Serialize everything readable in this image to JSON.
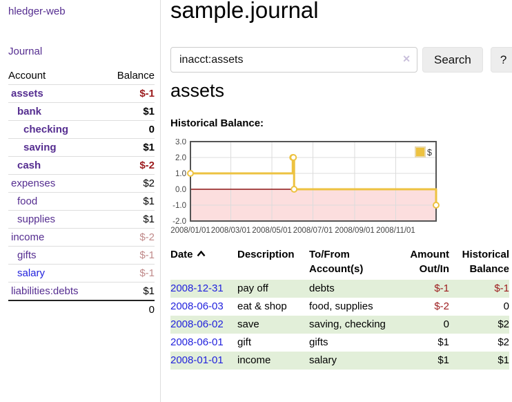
{
  "app": {
    "brand": "hledger-web",
    "nav_journal": "Journal"
  },
  "sidebar": {
    "header": {
      "account": "Account",
      "balance": "Balance"
    },
    "accounts": [
      {
        "name": "assets",
        "balance": "$-1",
        "level": 0,
        "bold": true,
        "link_color": "purple",
        "balance_style": "negative"
      },
      {
        "name": "bank",
        "balance": "$1",
        "level": 1,
        "bold": true,
        "link_color": "purple",
        "balance_style": "normal"
      },
      {
        "name": "checking",
        "balance": "0",
        "level": 2,
        "bold": true,
        "link_color": "purple",
        "balance_style": "normal"
      },
      {
        "name": "saving",
        "balance": "$1",
        "level": 2,
        "bold": true,
        "link_color": "purple",
        "balance_style": "normal"
      },
      {
        "name": "cash",
        "balance": "$-2",
        "level": 1,
        "bold": true,
        "link_color": "purple",
        "balance_style": "negative"
      },
      {
        "name": "expenses",
        "balance": "$2",
        "level": 0,
        "bold": false,
        "link_color": "purple",
        "balance_style": "normal"
      },
      {
        "name": "food",
        "balance": "$1",
        "level": 1,
        "bold": false,
        "link_color": "purple",
        "balance_style": "normal"
      },
      {
        "name": "supplies",
        "balance": "$1",
        "level": 1,
        "bold": false,
        "link_color": "purple",
        "balance_style": "normal"
      },
      {
        "name": "income",
        "balance": "$-2",
        "level": 0,
        "bold": false,
        "link_color": "purple",
        "balance_style": "negative-light"
      },
      {
        "name": "gifts",
        "balance": "$-1",
        "level": 1,
        "bold": false,
        "link_color": "purple",
        "balance_style": "negative-light"
      },
      {
        "name": "salary",
        "balance": "$-1",
        "level": 1,
        "bold": false,
        "link_color": "blue",
        "balance_style": "negative-light"
      },
      {
        "name": "liabilities:debts",
        "balance": "$1",
        "level": 0,
        "bold": false,
        "link_color": "purple",
        "balance_style": "normal"
      }
    ],
    "total": "0"
  },
  "main": {
    "title": "sample.journal",
    "search": {
      "value": "inacct:assets",
      "clear_icon": "✕",
      "button": "Search",
      "help_button": "?"
    },
    "account_heading": "assets",
    "chart_heading": "Historical Balance:"
  },
  "chart_data": {
    "type": "line",
    "title": "Historical Balance",
    "step": true,
    "series": [
      {
        "name": "$",
        "points": [
          [
            "2008-01-01",
            1
          ],
          [
            "2008-06-01",
            2
          ],
          [
            "2008-06-02",
            2
          ],
          [
            "2008-06-03",
            0
          ],
          [
            "2008-12-31",
            -1
          ]
        ]
      }
    ],
    "x_range": [
      "2008-01-01",
      "2008-12-31"
    ],
    "x_ticks": [
      {
        "date": "2008-01-01",
        "label": "2008/01/01"
      },
      {
        "date": "2008-03-01",
        "label": "2008/03/01"
      },
      {
        "date": "2008-05-01",
        "label": "2008/05/01"
      },
      {
        "date": "2008-07-01",
        "label": "2008/07/01"
      },
      {
        "date": "2008-09-01",
        "label": "2008/09/01"
      },
      {
        "date": "2008-11-01",
        "label": "2008/11/01"
      }
    ],
    "y_ticks": [
      {
        "v": 3,
        "label": "3.0"
      },
      {
        "v": 2,
        "label": "2.0"
      },
      {
        "v": 1,
        "label": "1.0"
      },
      {
        "v": 0,
        "label": "0.0"
      },
      {
        "v": -1,
        "label": "-1.0"
      },
      {
        "v": -2,
        "label": "-2.0"
      }
    ],
    "ylim": [
      -2,
      3
    ],
    "grid": true,
    "negative_region_shaded": true,
    "legend": {
      "label": "$",
      "position": "top-right"
    }
  },
  "register": {
    "header": {
      "date": "Date",
      "description": "Description",
      "accounts": "To/From Account(s)",
      "amount": "Amount Out/In",
      "balance": "Historical Balance"
    },
    "rows": [
      {
        "date": "2008-12-31",
        "description": "pay off",
        "accounts": "debts",
        "amount": "$-1",
        "amount_style": "negative",
        "balance": "$-1",
        "balance_style": "negative"
      },
      {
        "date": "2008-06-03",
        "description": "eat & shop",
        "accounts": "food, supplies",
        "amount": "$-2",
        "amount_style": "negative",
        "balance": "0",
        "balance_style": "normal"
      },
      {
        "date": "2008-06-02",
        "description": "save",
        "accounts": "saving, checking",
        "amount": "0",
        "amount_style": "normal",
        "balance": "$2",
        "balance_style": "normal"
      },
      {
        "date": "2008-06-01",
        "description": "gift",
        "accounts": "gifts",
        "amount": "$1",
        "amount_style": "normal",
        "balance": "$2",
        "balance_style": "normal"
      },
      {
        "date": "2008-01-01",
        "description": "income",
        "accounts": "salary",
        "amount": "$1",
        "amount_style": "normal",
        "balance": "$1",
        "balance_style": "normal"
      }
    ]
  },
  "colors": {
    "link_purple": "#552d90",
    "link_blue": "#2222dd",
    "negative": "#9c1b1d",
    "negative_light": "#c08a8a",
    "row_highlight_green": "#e2efd9",
    "chart_line_gold": "#edc240",
    "chart_negative_area": "#fcdede",
    "chart_zero_line": "#8c1212",
    "chart_border": "#545454",
    "chart_grid_line": "#dcdcdc"
  }
}
